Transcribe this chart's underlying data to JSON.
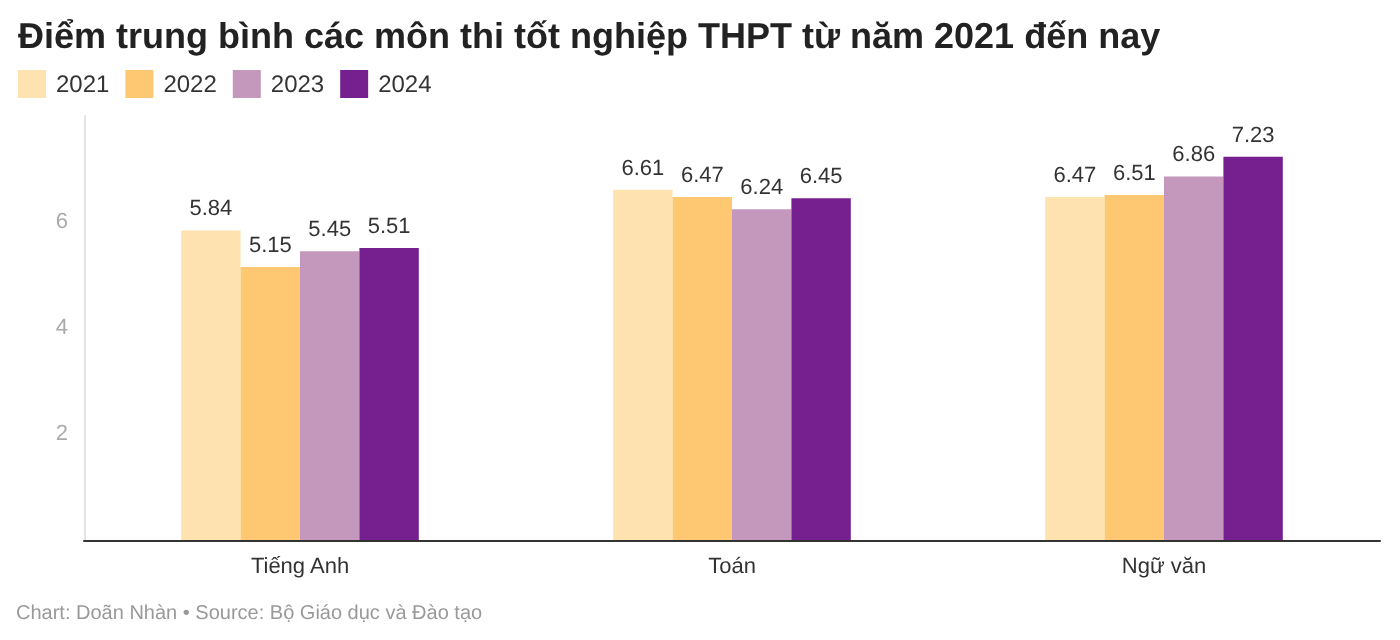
{
  "chart_data": {
    "type": "bar",
    "title": "Điểm trung bình các môn thi tốt nghiệp THPT từ năm 2021 đến nay",
    "categories": [
      "Tiếng Anh",
      "Toán",
      "Ngữ văn"
    ],
    "series": [
      {
        "name": "2021",
        "color": "#fee2b0",
        "values": [
          5.84,
          6.61,
          6.47
        ]
      },
      {
        "name": "2022",
        "color": "#fec872",
        "values": [
          5.15,
          6.47,
          6.51
        ]
      },
      {
        "name": "2023",
        "color": "#c497bd",
        "values": [
          5.45,
          6.24,
          6.86
        ]
      },
      {
        "name": "2024",
        "color": "#761f8f",
        "values": [
          5.51,
          6.45,
          7.23
        ]
      }
    ],
    "ylim": [
      0,
      8
    ],
    "yticks": [
      2,
      4,
      6
    ],
    "grid": false,
    "legend": "top left",
    "data_labels": true,
    "annotations": [
      "Chart: Doãn Nhàn • Source: Bộ Giáo dục và Đào tạo"
    ]
  }
}
